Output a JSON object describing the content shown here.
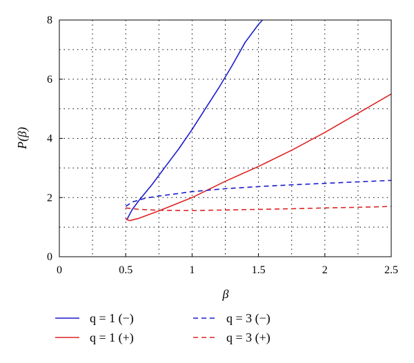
{
  "chart_data": {
    "type": "line",
    "xlabel": "β",
    "ylabel": "P(β)",
    "xlim": [
      0,
      2.5
    ],
    "ylim": [
      0,
      8
    ],
    "x_ticks": [
      "0",
      "0.5",
      "1",
      "1.5",
      "2",
      "2.5"
    ],
    "y_ticks": [
      "0",
      "2",
      "4",
      "6",
      "8"
    ],
    "grid": "dotted",
    "legend_position": "bottom",
    "series": [
      {
        "name": "q = 1 (−)",
        "color": "#1a1acc",
        "dash": "solid",
        "x": [
          0.51,
          0.52,
          0.55,
          0.6,
          0.7,
          0.8,
          0.9,
          1.0,
          1.1,
          1.2,
          1.3,
          1.4,
          1.5,
          1.53
        ],
        "y": [
          1.25,
          1.35,
          1.6,
          1.9,
          2.45,
          3.05,
          3.65,
          4.3,
          5.0,
          5.7,
          6.45,
          7.25,
          7.85,
          8.0
        ]
      },
      {
        "name": "q = 1 (+)",
        "color": "#dd2222",
        "dash": "solid",
        "x": [
          0.5,
          0.51,
          0.53,
          0.6,
          0.75,
          1.0,
          1.25,
          1.5,
          1.75,
          2.0,
          2.25,
          2.5
        ],
        "y": [
          1.3,
          1.25,
          1.22,
          1.3,
          1.55,
          2.0,
          2.55,
          3.05,
          3.6,
          4.2,
          4.85,
          5.5
        ]
      },
      {
        "name": "q = 3 (−)",
        "color": "#1a1acc",
        "dash": "dashed",
        "x": [
          0.5,
          0.55,
          0.65,
          0.75,
          1.0,
          1.25,
          1.5,
          1.75,
          2.0,
          2.25,
          2.5
        ],
        "y": [
          1.7,
          1.85,
          1.98,
          2.05,
          2.2,
          2.3,
          2.37,
          2.43,
          2.48,
          2.53,
          2.58
        ]
      },
      {
        "name": "q = 3 (+)",
        "color": "#dd2222",
        "dash": "dashed",
        "x": [
          0.5,
          0.6,
          0.75,
          1.0,
          1.25,
          1.5,
          1.75,
          2.0,
          2.25,
          2.5
        ],
        "y": [
          1.65,
          1.6,
          1.57,
          1.56,
          1.58,
          1.6,
          1.62,
          1.65,
          1.67,
          1.7
        ]
      }
    ]
  }
}
